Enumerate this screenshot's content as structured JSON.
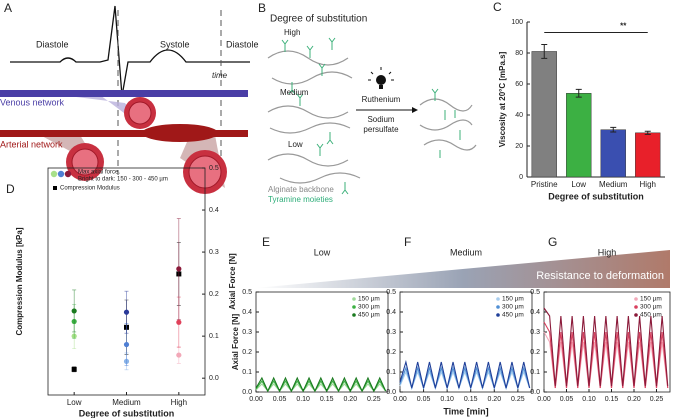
{
  "figure_a": {
    "label": "A",
    "phases": [
      "Diastole",
      "Systole",
      "Diastole"
    ],
    "time_label": "time",
    "venous": "Venous network",
    "arterial": "Arterial network"
  },
  "figure_b": {
    "label": "B",
    "title": "Degree of substitution",
    "levels": [
      "High",
      "Medium",
      "Low"
    ],
    "catalyst": "Ruthenium",
    "oxidant": [
      "Sodium",
      "persulfate"
    ],
    "legend": [
      "Alginate backbone",
      "Tyramine moieties"
    ]
  },
  "banner": "Resistance to deformation",
  "chart_data": [
    {
      "type": "bar",
      "label": "C",
      "categories": [
        "Pristine",
        "Low",
        "Medium",
        "High"
      ],
      "values": [
        81,
        54,
        30.5,
        28.5
      ],
      "errors": [
        4.5,
        2.5,
        1.5,
        1
      ],
      "colors": [
        "#808080",
        "#3cb043",
        "#3a4fb0",
        "#e8202a"
      ],
      "ylim": [
        0,
        100
      ],
      "yticks": [
        0,
        20,
        40,
        60,
        80,
        100
      ],
      "ylabel": "Viscosity at 20°C [mPa.s]",
      "xlabel": "Degree of substitution",
      "annotation": "**"
    },
    {
      "type": "scatter",
      "label": "D",
      "categories": [
        "Low",
        "Medium",
        "High"
      ],
      "ylim": [
        -4,
        50
      ],
      "y2lim": [
        -0.04,
        0.5
      ],
      "y2ticks": [
        {
          "value": 0,
          "label": "0.0"
        },
        {
          "value": 0.1,
          "label": "0.1"
        },
        {
          "value": 0.2,
          "label": "0.2"
        },
        {
          "value": 0.3,
          "label": "0.3"
        },
        {
          "value": 0.4,
          "label": "0.4"
        },
        {
          "value": 0.5,
          "label": "0.5"
        }
      ],
      "ylabel": "Compression Modulus [kPa]",
      "y2label": "Axial Force [N]",
      "xlabel": "Degree of substitution",
      "legend_text": [
        "Max axial force.",
        "Bright to dark: 150 - 300 - 450 µm"
      ],
      "series": [
        {
          "name": "Compression Modulus",
          "color": "#000000",
          "values": [
            2.1,
            12.1,
            24.8
          ],
          "errors": [
            0.6,
            6.5,
            7.5
          ]
        },
        {
          "axis": "y2",
          "colors": [
            "#a8e08a",
            "#8ab4e8",
            "#f2a8b8"
          ],
          "values": [
            0.1,
            0.04,
            0.055
          ],
          "errors": [
            0.03,
            0.02,
            0.02
          ]
        },
        {
          "axis": "y2",
          "colors": [
            "#3cb043",
            "#4f7fd4",
            "#e0405a"
          ],
          "values": [
            0.135,
            0.08,
            0.133
          ],
          "errors": [
            0.04,
            0.05,
            0.06
          ]
        },
        {
          "axis": "y2",
          "colors": [
            "#1a7a1f",
            "#2a3a99",
            "#8b1a3a"
          ],
          "values": [
            0.16,
            0.157,
            0.26
          ],
          "errors": [
            0.05,
            0.05,
            0.12
          ]
        }
      ]
    },
    {
      "type": "line",
      "label": "E",
      "title": "Low",
      "ylabel": "Axial Force [N]",
      "x": [
        0,
        0.0125,
        0.025,
        0.0375,
        0.05,
        0.0625,
        0.075,
        0.0875,
        0.1,
        0.1125,
        0.125,
        0.1375,
        0.15,
        0.1625,
        0.175,
        0.1875,
        0.2,
        0.2125,
        0.225,
        0.2375,
        0.25,
        0.2625,
        0.275
      ],
      "xlim": [
        0,
        0.28
      ],
      "ylim": [
        0,
        0.5
      ],
      "xticks": [
        {
          "value": 0,
          "label": "0.00"
        },
        {
          "value": 0.05,
          "label": "0.05"
        },
        {
          "value": 0.1,
          "label": "0.10"
        },
        {
          "value": 0.15,
          "label": "0.15"
        },
        {
          "value": 0.2,
          "label": "0.20"
        },
        {
          "value": 0.25,
          "label": "0.25"
        }
      ],
      "yticks": [
        {
          "value": 0,
          "label": "0.0"
        },
        {
          "value": 0.1,
          "label": "0.1"
        },
        {
          "value": 0.2,
          "label": "0.2"
        },
        {
          "value": 0.3,
          "label": "0.3"
        },
        {
          "value": 0.4,
          "label": "0.4"
        },
        {
          "value": 0.5,
          "label": "0.5"
        }
      ],
      "series": [
        {
          "name": "150 µm",
          "color": "#9fd99a",
          "values": [
            0.01,
            0.04,
            0.005,
            0.04,
            0.005,
            0.04,
            0.005,
            0.04,
            0.005,
            0.04,
            0.005,
            0.04,
            0.005,
            0.04,
            0.005,
            0.04,
            0.005,
            0.04,
            0.005,
            0.04,
            0.005,
            0.04,
            0.005
          ]
        },
        {
          "name": "300 µm",
          "color": "#3cb043",
          "values": [
            0.015,
            0.055,
            0.005,
            0.055,
            0.005,
            0.055,
            0.005,
            0.055,
            0.005,
            0.055,
            0.005,
            0.055,
            0.005,
            0.055,
            0.005,
            0.055,
            0.005,
            0.055,
            0.005,
            0.055,
            0.005,
            0.055,
            0.005
          ]
        },
        {
          "name": "450 µm",
          "color": "#1a7a1f",
          "values": [
            0.02,
            0.07,
            0.005,
            0.07,
            0.005,
            0.07,
            0.005,
            0.07,
            0.005,
            0.07,
            0.005,
            0.07,
            0.005,
            0.07,
            0.005,
            0.07,
            0.005,
            0.07,
            0.005,
            0.07,
            0.005,
            0.07,
            0.005
          ]
        }
      ]
    },
    {
      "type": "line",
      "label": "F",
      "title": "Medium",
      "xlabel": "Time [min]",
      "x": [
        0,
        0.0125,
        0.025,
        0.0375,
        0.05,
        0.0625,
        0.075,
        0.0875,
        0.1,
        0.1125,
        0.125,
        0.1375,
        0.15,
        0.1625,
        0.175,
        0.1875,
        0.2,
        0.2125,
        0.225,
        0.2375,
        0.25,
        0.2625,
        0.275
      ],
      "xlim": [
        0,
        0.28
      ],
      "ylim": [
        0,
        0.5
      ],
      "xticks": [
        {
          "value": 0,
          "label": "0.00"
        },
        {
          "value": 0.05,
          "label": "0.05"
        },
        {
          "value": 0.1,
          "label": "0.10"
        },
        {
          "value": 0.15,
          "label": "0.15"
        },
        {
          "value": 0.2,
          "label": "0.20"
        },
        {
          "value": 0.25,
          "label": "0.25"
        }
      ],
      "yticks": [
        {
          "value": 0,
          "label": "0.0"
        },
        {
          "value": 0.1,
          "label": "0.1"
        },
        {
          "value": 0.2,
          "label": "0.2"
        },
        {
          "value": 0.3,
          "label": "0.3"
        },
        {
          "value": 0.4,
          "label": "0.4"
        },
        {
          "value": 0.5,
          "label": "0.5"
        }
      ],
      "series": [
        {
          "name": "150 µm",
          "color": "#a8cdee",
          "values": [
            0.03,
            0.1,
            0.02,
            0.1,
            0.02,
            0.1,
            0.02,
            0.1,
            0.02,
            0.1,
            0.02,
            0.1,
            0.02,
            0.1,
            0.02,
            0.1,
            0.02,
            0.1,
            0.02,
            0.1,
            0.02,
            0.1,
            0.02
          ]
        },
        {
          "name": "300 µm",
          "color": "#4f8fd4",
          "values": [
            0.04,
            0.12,
            0.02,
            0.12,
            0.02,
            0.12,
            0.02,
            0.12,
            0.02,
            0.12,
            0.02,
            0.12,
            0.02,
            0.12,
            0.02,
            0.12,
            0.02,
            0.12,
            0.02,
            0.12,
            0.02,
            0.12,
            0.02
          ]
        },
        {
          "name": "450 µm",
          "color": "#1f3f99",
          "values": [
            0.05,
            0.15,
            0.02,
            0.15,
            0.02,
            0.15,
            0.02,
            0.15,
            0.02,
            0.15,
            0.02,
            0.15,
            0.02,
            0.15,
            0.02,
            0.15,
            0.02,
            0.15,
            0.02,
            0.15,
            0.02,
            0.15,
            0.02
          ]
        }
      ]
    },
    {
      "type": "line",
      "label": "G",
      "title": "High",
      "x": [
        0,
        0.0125,
        0.025,
        0.0375,
        0.05,
        0.0625,
        0.075,
        0.0875,
        0.1,
        0.1125,
        0.125,
        0.1375,
        0.15,
        0.1625,
        0.175,
        0.1875,
        0.2,
        0.2125,
        0.225,
        0.2375,
        0.25,
        0.2625,
        0.275
      ],
      "xlim": [
        0,
        0.28
      ],
      "ylim": [
        0,
        0.5
      ],
      "xticks": [
        {
          "value": 0,
          "label": "0.00"
        },
        {
          "value": 0.05,
          "label": "0.05"
        },
        {
          "value": 0.1,
          "label": "0.10"
        },
        {
          "value": 0.15,
          "label": "0.15"
        },
        {
          "value": 0.2,
          "label": "0.20"
        },
        {
          "value": 0.25,
          "label": "0.25"
        }
      ],
      "yticks": [
        {
          "value": 0,
          "label": "0.0"
        },
        {
          "value": 0.1,
          "label": "0.1"
        },
        {
          "value": 0.2,
          "label": "0.2"
        },
        {
          "value": 0.3,
          "label": "0.3"
        },
        {
          "value": 0.4,
          "label": "0.4"
        },
        {
          "value": 0.5,
          "label": "0.5"
        }
      ],
      "series": [
        {
          "name": "150 µm",
          "color": "#f2a8b8",
          "values": [
            0.3,
            0.25,
            0.02,
            0.25,
            0.02,
            0.25,
            0.02,
            0.25,
            0.02,
            0.25,
            0.02,
            0.25,
            0.02,
            0.25,
            0.02,
            0.25,
            0.02,
            0.25,
            0.02,
            0.25,
            0.02,
            0.25,
            0.02
          ]
        },
        {
          "name": "300 µm",
          "color": "#d9405e",
          "values": [
            0.35,
            0.3,
            0.02,
            0.3,
            0.02,
            0.3,
            0.02,
            0.3,
            0.02,
            0.3,
            0.02,
            0.3,
            0.02,
            0.3,
            0.02,
            0.3,
            0.02,
            0.3,
            0.02,
            0.3,
            0.02,
            0.3,
            0.02
          ]
        },
        {
          "name": "450 µm",
          "color": "#8b1a3a",
          "values": [
            0.42,
            0.38,
            0.03,
            0.38,
            0.03,
            0.38,
            0.03,
            0.38,
            0.03,
            0.38,
            0.03,
            0.38,
            0.03,
            0.38,
            0.03,
            0.38,
            0.03,
            0.38,
            0.03,
            0.38,
            0.03,
            0.38,
            0.03
          ]
        }
      ]
    }
  ]
}
